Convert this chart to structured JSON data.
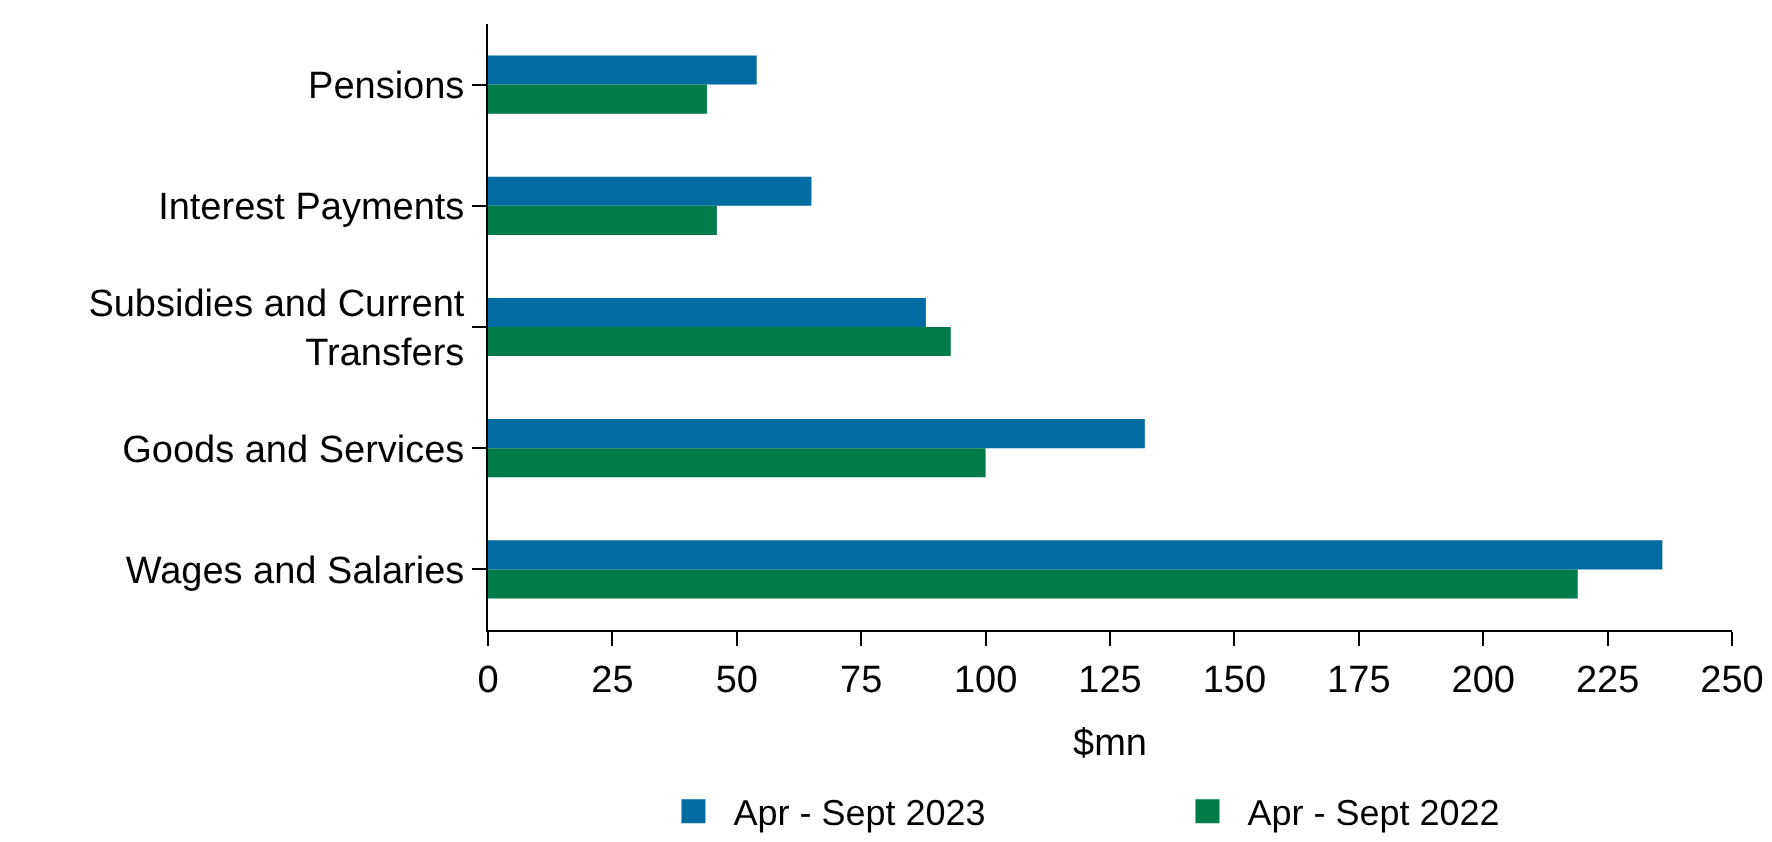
{
  "chart_data": {
    "type": "bar",
    "orientation": "horizontal",
    "categories": [
      "Pensions",
      "Interest Payments",
      "Subsidies and Current Transfers",
      "Goods and Services",
      "Wages and Salaries"
    ],
    "series": [
      {
        "name": "Apr - Sept 2023",
        "color": "#016ca2",
        "values": [
          54,
          65,
          88,
          132,
          236
        ]
      },
      {
        "name": "Apr - Sept 2022",
        "color": "#017b4a",
        "values": [
          44,
          46,
          93,
          100,
          219
        ]
      }
    ],
    "xlabel": "$mn",
    "xlim": [
      0,
      250
    ],
    "xticks": [
      0,
      25,
      50,
      75,
      100,
      125,
      150,
      175,
      200,
      225,
      250
    ],
    "grid": false,
    "legend": "bottom"
  }
}
